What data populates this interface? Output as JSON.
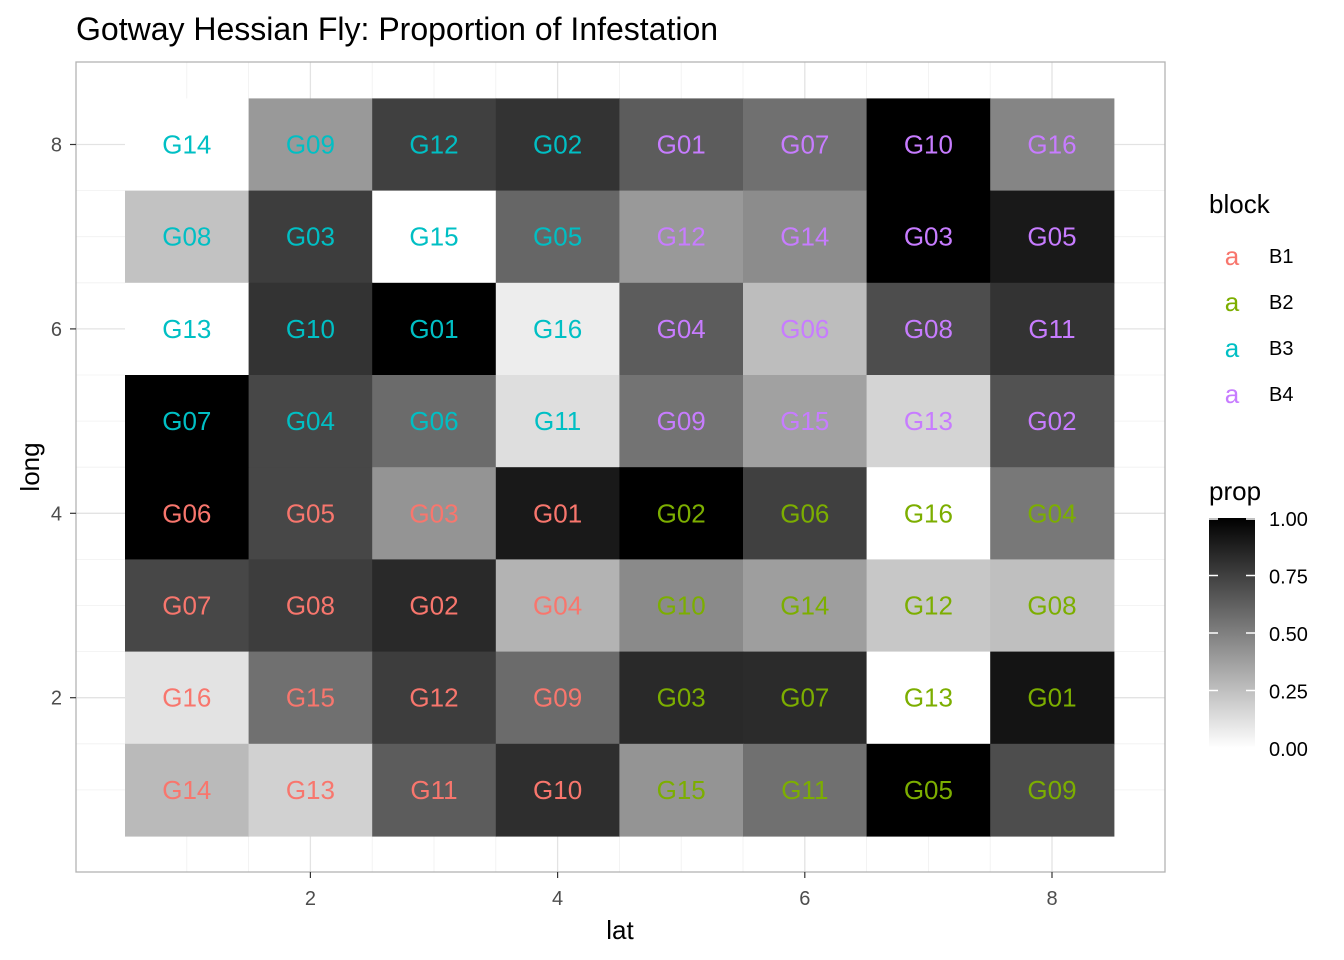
{
  "chart_data": {
    "type": "heatmap",
    "title": "Gotway Hessian Fly: Proportion of Infestation",
    "xlabel": "lat",
    "ylabel": "long",
    "xlim": [
      0.5,
      8.5
    ],
    "ylim": [
      0.5,
      8.5
    ],
    "x_ticks": [
      2,
      4,
      6,
      8
    ],
    "y_ticks": [
      2,
      4,
      6,
      8
    ],
    "grid": true,
    "fill_scale": {
      "name": "prop",
      "low": "#ffffff",
      "high": "#000000",
      "breaks": [
        "0.00",
        "0.25",
        "0.50",
        "0.75",
        "1.00"
      ],
      "legend_position": "right"
    },
    "color_legend": {
      "name": "block",
      "key_glyph": "a",
      "legend_position": "right",
      "entries": [
        {
          "label": "B1",
          "color": "#F8766D"
        },
        {
          "label": "B2",
          "color": "#7CAE00"
        },
        {
          "label": "B3",
          "color": "#00BFC4"
        },
        {
          "label": "B4",
          "color": "#C77CFF"
        }
      ]
    },
    "cells": [
      {
        "lat": 1,
        "long": 8,
        "gen": "G14",
        "block": "B3",
        "prop": 0.0
      },
      {
        "lat": 2,
        "long": 8,
        "gen": "G09",
        "block": "B3",
        "prop": 0.4
      },
      {
        "lat": 3,
        "long": 8,
        "gen": "G12",
        "block": "B3",
        "prop": 0.75
      },
      {
        "lat": 4,
        "long": 8,
        "gen": "G02",
        "block": "B3",
        "prop": 0.8
      },
      {
        "lat": 5,
        "long": 8,
        "gen": "G01",
        "block": "B4",
        "prop": 0.64
      },
      {
        "lat": 6,
        "long": 8,
        "gen": "G07",
        "block": "B4",
        "prop": 0.56
      },
      {
        "lat": 7,
        "long": 8,
        "gen": "G10",
        "block": "B4",
        "prop": 1.0
      },
      {
        "lat": 8,
        "long": 8,
        "gen": "G16",
        "block": "B4",
        "prop": 0.48
      },
      {
        "lat": 1,
        "long": 7,
        "gen": "G08",
        "block": "B3",
        "prop": 0.24
      },
      {
        "lat": 2,
        "long": 7,
        "gen": "G03",
        "block": "B3",
        "prop": 0.76
      },
      {
        "lat": 3,
        "long": 7,
        "gen": "G15",
        "block": "B3",
        "prop": 0.0
      },
      {
        "lat": 4,
        "long": 7,
        "gen": "G05",
        "block": "B3",
        "prop": 0.6
      },
      {
        "lat": 5,
        "long": 7,
        "gen": "G12",
        "block": "B4",
        "prop": 0.4
      },
      {
        "lat": 6,
        "long": 7,
        "gen": "G14",
        "block": "B4",
        "prop": 0.45
      },
      {
        "lat": 7,
        "long": 7,
        "gen": "G03",
        "block": "B4",
        "prop": 1.0
      },
      {
        "lat": 8,
        "long": 7,
        "gen": "G05",
        "block": "B4",
        "prop": 0.9
      },
      {
        "lat": 1,
        "long": 6,
        "gen": "G13",
        "block": "B3",
        "prop": 0.0
      },
      {
        "lat": 2,
        "long": 6,
        "gen": "G10",
        "block": "B3",
        "prop": 0.8
      },
      {
        "lat": 3,
        "long": 6,
        "gen": "G01",
        "block": "B3",
        "prop": 1.0
      },
      {
        "lat": 4,
        "long": 6,
        "gen": "G16",
        "block": "B3",
        "prop": 0.07
      },
      {
        "lat": 5,
        "long": 6,
        "gen": "G04",
        "block": "B4",
        "prop": 0.64
      },
      {
        "lat": 6,
        "long": 6,
        "gen": "G06",
        "block": "B4",
        "prop": 0.26
      },
      {
        "lat": 7,
        "long": 6,
        "gen": "G08",
        "block": "B4",
        "prop": 0.7
      },
      {
        "lat": 8,
        "long": 6,
        "gen": "G11",
        "block": "B4",
        "prop": 0.8
      },
      {
        "lat": 1,
        "long": 5,
        "gen": "G07",
        "block": "B3",
        "prop": 1.0
      },
      {
        "lat": 2,
        "long": 5,
        "gen": "G04",
        "block": "B3",
        "prop": 0.72
      },
      {
        "lat": 3,
        "long": 5,
        "gen": "G06",
        "block": "B3",
        "prop": 0.58
      },
      {
        "lat": 4,
        "long": 5,
        "gen": "G11",
        "block": "B3",
        "prop": 0.13
      },
      {
        "lat": 5,
        "long": 5,
        "gen": "G09",
        "block": "B4",
        "prop": 0.55
      },
      {
        "lat": 6,
        "long": 5,
        "gen": "G15",
        "block": "B4",
        "prop": 0.37
      },
      {
        "lat": 7,
        "long": 5,
        "gen": "G13",
        "block": "B4",
        "prop": 0.17
      },
      {
        "lat": 8,
        "long": 5,
        "gen": "G02",
        "block": "B4",
        "prop": 0.68
      },
      {
        "lat": 1,
        "long": 4,
        "gen": "G06",
        "block": "B1",
        "prop": 1.0
      },
      {
        "lat": 2,
        "long": 4,
        "gen": "G05",
        "block": "B1",
        "prop": 0.72
      },
      {
        "lat": 3,
        "long": 4,
        "gen": "G03",
        "block": "B1",
        "prop": 0.42
      },
      {
        "lat": 4,
        "long": 4,
        "gen": "G01",
        "block": "B1",
        "prop": 0.9
      },
      {
        "lat": 5,
        "long": 4,
        "gen": "G02",
        "block": "B2",
        "prop": 1.0
      },
      {
        "lat": 6,
        "long": 4,
        "gen": "G06",
        "block": "B2",
        "prop": 0.75
      },
      {
        "lat": 7,
        "long": 4,
        "gen": "G16",
        "block": "B2",
        "prop": 0.0
      },
      {
        "lat": 8,
        "long": 4,
        "gen": "G04",
        "block": "B2",
        "prop": 0.53
      },
      {
        "lat": 1,
        "long": 3,
        "gen": "G07",
        "block": "B1",
        "prop": 0.72
      },
      {
        "lat": 2,
        "long": 3,
        "gen": "G08",
        "block": "B1",
        "prop": 0.76
      },
      {
        "lat": 3,
        "long": 3,
        "gen": "G02",
        "block": "B1",
        "prop": 0.84
      },
      {
        "lat": 4,
        "long": 3,
        "gen": "G04",
        "block": "B1",
        "prop": 0.3
      },
      {
        "lat": 5,
        "long": 3,
        "gen": "G10",
        "block": "B2",
        "prop": 0.46
      },
      {
        "lat": 6,
        "long": 3,
        "gen": "G14",
        "block": "B2",
        "prop": 0.38
      },
      {
        "lat": 7,
        "long": 3,
        "gen": "G12",
        "block": "B2",
        "prop": 0.22
      },
      {
        "lat": 8,
        "long": 3,
        "gen": "G08",
        "block": "B2",
        "prop": 0.25
      },
      {
        "lat": 1,
        "long": 2,
        "gen": "G16",
        "block": "B1",
        "prop": 0.11
      },
      {
        "lat": 2,
        "long": 2,
        "gen": "G15",
        "block": "B1",
        "prop": 0.56
      },
      {
        "lat": 3,
        "long": 2,
        "gen": "G12",
        "block": "B1",
        "prop": 0.76
      },
      {
        "lat": 4,
        "long": 2,
        "gen": "G09",
        "block": "B1",
        "prop": 0.58
      },
      {
        "lat": 5,
        "long": 2,
        "gen": "G03",
        "block": "B2",
        "prop": 0.84
      },
      {
        "lat": 6,
        "long": 2,
        "gen": "G07",
        "block": "B2",
        "prop": 0.83
      },
      {
        "lat": 7,
        "long": 2,
        "gen": "G13",
        "block": "B2",
        "prop": 0.0
      },
      {
        "lat": 8,
        "long": 2,
        "gen": "G01",
        "block": "B2",
        "prop": 0.92
      },
      {
        "lat": 1,
        "long": 1,
        "gen": "G14",
        "block": "B1",
        "prop": 0.27
      },
      {
        "lat": 2,
        "long": 1,
        "gen": "G13",
        "block": "B1",
        "prop": 0.18
      },
      {
        "lat": 3,
        "long": 1,
        "gen": "G11",
        "block": "B1",
        "prop": 0.64
      },
      {
        "lat": 4,
        "long": 1,
        "gen": "G10",
        "block": "B1",
        "prop": 0.82
      },
      {
        "lat": 5,
        "long": 1,
        "gen": "G15",
        "block": "B2",
        "prop": 0.42
      },
      {
        "lat": 6,
        "long": 1,
        "gen": "G11",
        "block": "B2",
        "prop": 0.56
      },
      {
        "lat": 7,
        "long": 1,
        "gen": "G05",
        "block": "B2",
        "prop": 1.0
      },
      {
        "lat": 8,
        "long": 1,
        "gen": "G09",
        "block": "B2",
        "prop": 0.7
      }
    ]
  }
}
